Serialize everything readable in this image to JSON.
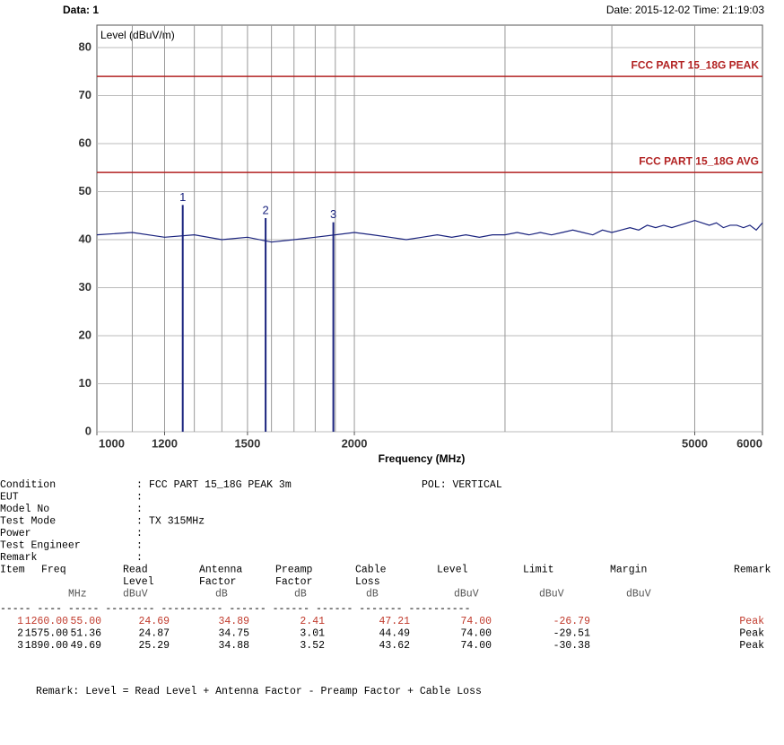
{
  "chart_data": {
    "type": "line",
    "data_label": "Data: 1",
    "y_label": "Level (dBuV/m)",
    "timestamp": "Date: 2015-12-02  Time: 21:19:03",
    "x_label": "Frequency (MHz)",
    "log_x": true,
    "xlim": [
      1000,
      6000
    ],
    "xticks": [
      1000,
      1200,
      1500,
      2000,
      5000,
      6000
    ],
    "x_grid": [
      1100,
      1200,
      1300,
      1400,
      1500,
      1600,
      1700,
      1800,
      1900,
      2000,
      3000,
      4000,
      5000
    ],
    "ylim": [
      0,
      80
    ],
    "yticks": [
      0,
      10,
      20,
      30,
      40,
      50,
      60,
      70,
      80
    ],
    "grid": true,
    "x": [
      1000,
      1100,
      1200,
      1300,
      1400,
      1500,
      1600,
      1700,
      1800,
      1900,
      2000,
      2100,
      2200,
      2300,
      2400,
      2500,
      2600,
      2700,
      2800,
      2900,
      3000,
      3100,
      3200,
      3300,
      3400,
      3500,
      3600,
      3700,
      3800,
      3900,
      4000,
      4100,
      4200,
      4300,
      4400,
      4500,
      4600,
      4700,
      4800,
      4900,
      5000,
      5100,
      5200,
      5300,
      5400,
      5500,
      5600,
      5700,
      5800,
      5900,
      6000
    ],
    "series": [
      {
        "color": "#1a237e",
        "values": [
          41,
          41.5,
          40.5,
          41,
          40,
          40.5,
          39.5,
          40,
          40.5,
          41,
          41.5,
          41,
          40.5,
          40,
          40.5,
          41,
          40.5,
          41,
          40.5,
          41,
          41,
          41.5,
          41,
          41.5,
          41,
          41.5,
          42,
          41.5,
          41,
          42,
          41.5,
          42,
          42.5,
          42,
          43,
          42.5,
          43,
          42.5,
          43,
          43.5,
          44,
          43.5,
          43,
          43.5,
          42.5,
          43,
          43,
          42.5,
          43,
          42,
          43.5
        ]
      }
    ],
    "limits": [
      {
        "name": "FCC PART 15_18G PEAK",
        "value": 74,
        "color": "#b22222"
      },
      {
        "name": "FCC PART 15_18G AVG",
        "value": 54,
        "color": "#b22222"
      }
    ],
    "markers": [
      {
        "label": "1",
        "x": 1260,
        "value": 47.21
      },
      {
        "label": "2",
        "x": 1575,
        "value": 44.49
      },
      {
        "label": "3",
        "x": 1890,
        "value": 43.62
      }
    ],
    "marker_color": "#1a237e"
  },
  "report": {
    "colon": ":",
    "conditions": [
      {
        "label": "Condition",
        "value": "FCC PART 15_18G PEAK 3m",
        "extra": "POL: VERTICAL"
      },
      {
        "label": "EUT"
      },
      {
        "label": "Model No"
      },
      {
        "label": "Test Mode",
        "value": "TX 315MHz"
      },
      {
        "label": "Power"
      },
      {
        "label": "Test Engineer"
      },
      {
        "label": "Remark"
      }
    ],
    "headers": [
      [
        "Item",
        "Freq",
        "Read",
        "Antenna",
        "Preamp",
        "Cable",
        "Level",
        "Limit",
        "Margin",
        "Remark"
      ],
      [
        "Level",
        "Factor",
        "Factor",
        "Loss"
      ],
      [
        "MHz",
        "dBuV",
        "dB",
        "dB",
        "dB",
        "dBuV",
        "dBuV",
        "dBuV"
      ]
    ],
    "separator": "----- ---- ----- -------- ---------- ------ ------ ------ ------- ----------",
    "rows": [
      [
        "1",
        "1260.00",
        "55.00",
        "24.69",
        "34.89",
        "2.41",
        "47.21",
        "74.00",
        "-26.79",
        "Peak"
      ],
      [
        "2",
        "1575.00",
        "51.36",
        "24.87",
        "34.75",
        "3.01",
        "44.49",
        "74.00",
        "-29.51",
        "Peak"
      ],
      [
        "3",
        "1890.00",
        "49.69",
        "25.29",
        "34.88",
        "3.52",
        "43.62",
        "74.00",
        "-30.38",
        "Peak"
      ]
    ],
    "highlight_row": 0,
    "highlight_color": "#c0392b",
    "remark": "Remark: Level = Read Level + Antenna Factor - Preamp Factor + Cable Loss"
  }
}
